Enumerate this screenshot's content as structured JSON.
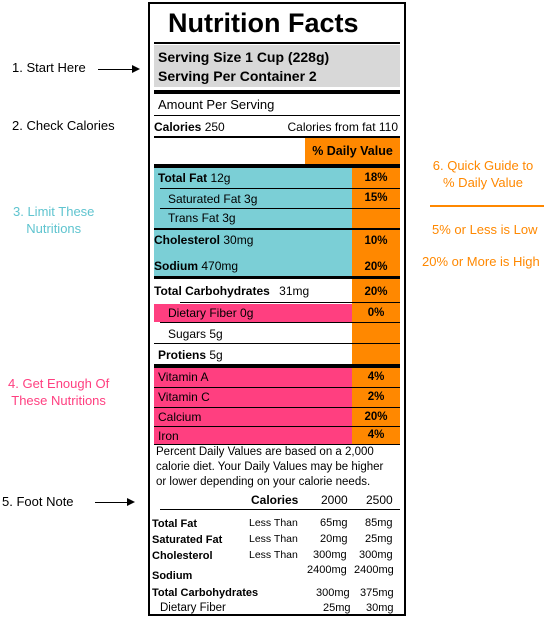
{
  "annotations": {
    "start_here": "1. Start Here",
    "check_calories": "2. Check Calories",
    "limit_these": [
      "3. Limit These",
      "Nutritions"
    ],
    "get_enough": [
      "4. Get Enough Of",
      "These Nutritions"
    ],
    "foot_note": "5. Foot Note",
    "quick_guide": [
      "6. Quick Guide to",
      "% Daily Value"
    ],
    "low_rule": "5% or Less is Low",
    "high_rule": "20% or More is High"
  },
  "label": {
    "title": "Nutrition Facts",
    "serving_size": "Serving Size 1 Cup (228g)",
    "serving_per_container": "Serving Per Container 2",
    "amount_per_serving": "Amount Per Serving",
    "calories_label": "Calories",
    "calories_value": "250",
    "calories_from_fat": "Calories from fat 110",
    "daily_value_header": "% Daily Value",
    "nutrients": {
      "total_fat": {
        "name": "Total Fat",
        "amount": "12g",
        "dv": "18%"
      },
      "saturated_fat": {
        "name": "Saturated Fat 3g",
        "dv": "15%"
      },
      "trans_fat": {
        "name": "Trans Fat 3g"
      },
      "cholesterol": {
        "name": "Cholesterol",
        "amount": "30mg",
        "dv": "10%"
      },
      "sodium": {
        "name": "Sodium",
        "amount": "470mg",
        "dv": "20%"
      },
      "total_carbohydrates": {
        "name": "Total Carbohydrates",
        "amount": "31mg",
        "dv": "20%"
      },
      "dietary_fiber": {
        "name": "Dietary Fiber 0g",
        "dv": "0%"
      },
      "sugars": {
        "name": "Sugars 5g"
      },
      "proteins": {
        "name": "Protiens",
        "amount": "5g"
      }
    },
    "vitamins": {
      "vitamin_a": {
        "name": "Vitamin A",
        "dv": "4%"
      },
      "vitamin_c": {
        "name": "Vitamin C",
        "dv": "2%"
      },
      "calcium": {
        "name": "Calcium",
        "dv": "20%"
      },
      "iron": {
        "name": "Iron",
        "dv": "4%"
      }
    },
    "footnote": {
      "text_lines": [
        "Percent Daily Values are based on a 2,000",
        "calorie diet. Your Daily Values may be higher",
        "or lower depending on your calorie needs."
      ],
      "header_calories": "Calories",
      "header_2000": "2000",
      "header_2500": "2500",
      "rows": {
        "total_fat": {
          "name": "Total Fat",
          "qual": "Less Than",
          "v2000": "65mg",
          "v2500": "85mg"
        },
        "saturated_fat": {
          "name": "Saturated Fat",
          "qual": "Less Than",
          "v2000": "20mg",
          "v2500": "25mg"
        },
        "cholesterol": {
          "name": "Cholesterol",
          "qual": "Less Than",
          "v2000": "300mg",
          "v2500": "300mg"
        },
        "sodium": {
          "name": "Sodium",
          "v2000": "2400mg",
          "v2500": "2400mg"
        },
        "total_carbohydrates": {
          "name": "Total Carbohydrates",
          "v2000": "300mg",
          "v2500": "375mg"
        },
        "dietary_fiber": {
          "name": "Dietary Fiber",
          "v2000": "25mg",
          "v2500": "30mg"
        }
      }
    }
  },
  "colors": {
    "limit": "#7bcfd6",
    "get_enough": "#ff3f80",
    "daily_value": "#ff8800"
  }
}
